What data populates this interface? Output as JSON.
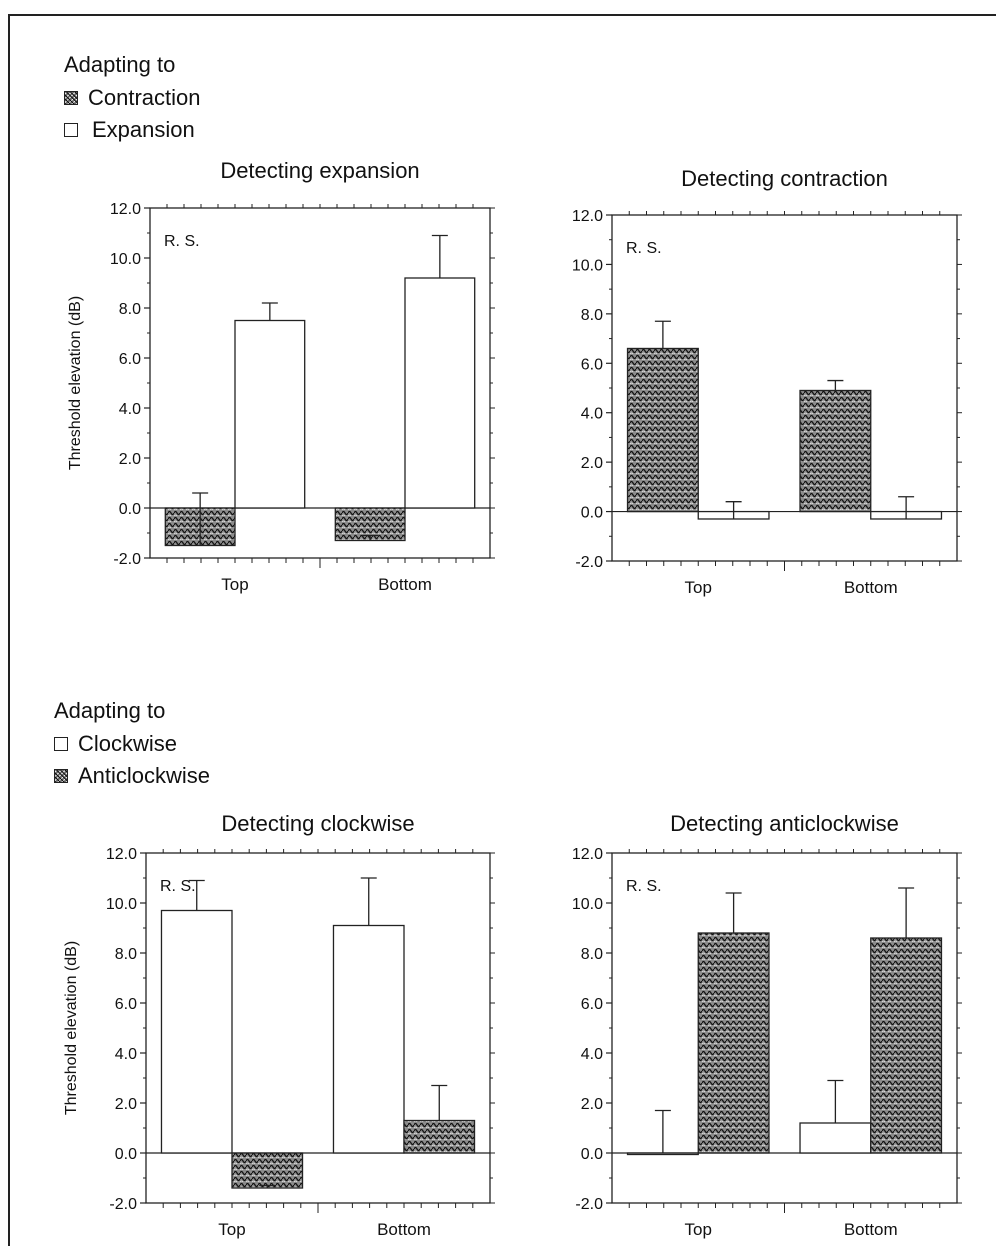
{
  "legends": [
    {
      "title": "Adapting to",
      "items": [
        {
          "label": "Contraction",
          "swatch": "hatch"
        },
        {
          "label": "Expansion",
          "swatch": "open"
        }
      ]
    },
    {
      "title": "Adapting to",
      "items": [
        {
          "label": "Clockwise",
          "swatch": "open"
        },
        {
          "label": "Anticlockwise",
          "swatch": "hatch"
        }
      ]
    }
  ],
  "colors": {
    "hatch_dark": "#111111",
    "hatch_light": "#9a9a9a",
    "open": "#ffffff",
    "line": "#222222"
  },
  "chart_data": [
    {
      "type": "bar",
      "title": "Detecting expansion",
      "ylabel": "Threshold elevation (dB)",
      "annotation": "R. S.",
      "categories": [
        "Top",
        "Bottom"
      ],
      "yticks": [
        "-2.0",
        "0.0",
        "2.0",
        "4.0",
        "6.0",
        "8.0",
        "10.0",
        "12.0"
      ],
      "ylim": [
        -2,
        12
      ],
      "series": [
        {
          "swatch": "hatch",
          "values": [
            -1.5,
            -1.3
          ],
          "errors": [
            2.1,
            0.2
          ]
        },
        {
          "swatch": "open",
          "values": [
            7.5,
            9.2
          ],
          "errors": [
            0.7,
            1.7
          ]
        }
      ]
    },
    {
      "type": "bar",
      "title": "Detecting contraction",
      "ylabel": "",
      "annotation": "R. S.",
      "categories": [
        "Top",
        "Bottom"
      ],
      "yticks": [
        "-2.0",
        "0.0",
        "2.0",
        "4.0",
        "6.0",
        "8.0",
        "10.0",
        "12.0"
      ],
      "ylim": [
        -2,
        12
      ],
      "series": [
        {
          "swatch": "hatch",
          "values": [
            6.6,
            4.9
          ],
          "errors": [
            1.1,
            0.4
          ]
        },
        {
          "swatch": "open",
          "values": [
            -0.3,
            -0.3
          ],
          "errors": [
            0.7,
            0.9
          ]
        }
      ]
    },
    {
      "type": "bar",
      "title": "Detecting clockwise",
      "ylabel": "Threshold elevation (dB)",
      "annotation": "R. S.",
      "categories": [
        "Top",
        "Bottom"
      ],
      "yticks": [
        "-2.0",
        "0.0",
        "2.0",
        "4.0",
        "6.0",
        "8.0",
        "10.0",
        "12.0"
      ],
      "ylim": [
        -2,
        12
      ],
      "series": [
        {
          "swatch": "open",
          "values": [
            9.7,
            9.1
          ],
          "errors": [
            1.2,
            1.9
          ]
        },
        {
          "swatch": "hatch",
          "values": [
            -1.4,
            1.3
          ],
          "errors": [
            0.1,
            1.4
          ]
        }
      ]
    },
    {
      "type": "bar",
      "title": "Detecting anticlockwise",
      "ylabel": "",
      "annotation": "R. S.",
      "categories": [
        "Top",
        "Bottom"
      ],
      "yticks": [
        "-2.0",
        "0.0",
        "2.0",
        "4.0",
        "6.0",
        "8.0",
        "10.0",
        "12.0"
      ],
      "ylim": [
        -2,
        12
      ],
      "series": [
        {
          "swatch": "open",
          "values": [
            0.0,
            1.2
          ],
          "errors": [
            1.7,
            1.7
          ]
        },
        {
          "swatch": "hatch",
          "values": [
            8.8,
            8.6
          ],
          "errors": [
            1.6,
            2.0
          ]
        }
      ]
    }
  ]
}
